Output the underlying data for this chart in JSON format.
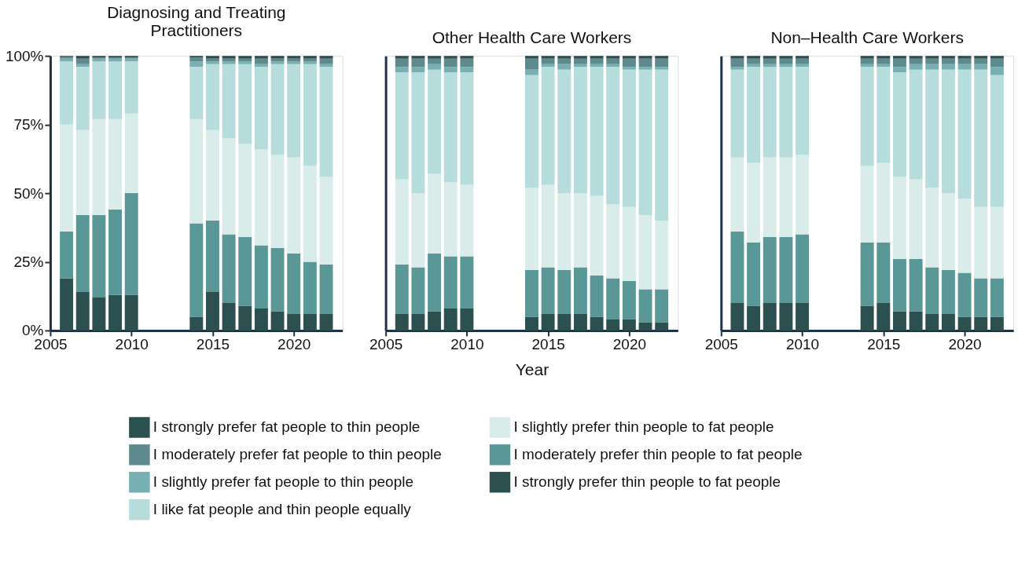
{
  "chart_data": [
    {
      "type": "bar",
      "stacked": true,
      "title": "Diagnosing and Treating Practitioners",
      "x": [
        2006,
        2007,
        2008,
        2009,
        2010,
        2014,
        2015,
        2016,
        2017,
        2018,
        2019,
        2020,
        2021,
        2022
      ],
      "xlim": [
        2005,
        2023
      ],
      "xticks": [
        2005,
        2010,
        2015,
        2020
      ],
      "ylim": [
        0,
        100
      ],
      "yticks": [
        {
          "value": 0,
          "label": "0%"
        },
        {
          "value": 25,
          "label": "25%"
        },
        {
          "value": 50,
          "label": "50%"
        },
        {
          "value": 75,
          "label": "75%"
        },
        {
          "value": 100,
          "label": "100%"
        }
      ],
      "legend": "bottom",
      "series": [
        {
          "name": "I strongly prefer thin people to fat people",
          "color": "#2c5050",
          "values": [
            19,
            14,
            12,
            13,
            13,
            5,
            14,
            10,
            9,
            8,
            7,
            6,
            6,
            6
          ]
        },
        {
          "name": "I moderately prefer thin people to fat people",
          "color": "#5a9898",
          "values": [
            17,
            28,
            30,
            31,
            37,
            34,
            26,
            25,
            25,
            23,
            23,
            22,
            19,
            18
          ]
        },
        {
          "name": "I slightly prefer thin people to fat people",
          "color": "#d9ecea",
          "values": [
            39,
            31,
            35,
            33,
            29,
            38,
            33,
            35,
            34,
            35,
            34,
            35,
            35,
            32
          ]
        },
        {
          "name": "I like fat people and thin people equally",
          "color": "#b7dcdc",
          "values": [
            23,
            23,
            21,
            21,
            19,
            19,
            24,
            27,
            29,
            30,
            33,
            34,
            37,
            40
          ]
        },
        {
          "name": "I slightly prefer fat people to thin people",
          "color": "#77b0b2",
          "values": [
            1,
            1,
            1,
            1,
            1,
            2,
            1,
            1,
            1,
            1,
            1,
            1,
            1,
            1
          ]
        },
        {
          "name": "I moderately prefer fat people to thin people",
          "color": "#5e8a8e",
          "values": [
            0.6,
            2,
            0.5,
            0.5,
            0.5,
            1.5,
            1,
            1,
            1,
            2,
            1,
            1,
            1,
            2
          ]
        },
        {
          "name": "I strongly prefer fat people to thin people",
          "color": "#2a5050",
          "values": [
            0.4,
            1,
            0.5,
            0.5,
            0.5,
            0.5,
            1,
            1,
            1,
            1,
            1,
            1,
            1,
            1
          ]
        }
      ]
    },
    {
      "type": "bar",
      "stacked": true,
      "title": "Other Health Care Workers",
      "xlabel": "Year",
      "x": [
        2006,
        2007,
        2008,
        2009,
        2010,
        2014,
        2015,
        2016,
        2017,
        2018,
        2019,
        2020,
        2021,
        2022
      ],
      "xlim": [
        2005,
        2023
      ],
      "xticks": [
        2005,
        2010,
        2015,
        2020
      ],
      "ylim": [
        0,
        100
      ],
      "tick_labels": "x",
      "legend": "bottom",
      "series": [
        {
          "name": "I strongly prefer thin people to fat people",
          "color": "#2c5050",
          "values": [
            6,
            6,
            7,
            8,
            8,
            5,
            6,
            6,
            6,
            5,
            4,
            4,
            3,
            3
          ]
        },
        {
          "name": "I moderately prefer thin people to fat people",
          "color": "#5a9898",
          "values": [
            18,
            17,
            21,
            19,
            19,
            17,
            17,
            16,
            17,
            15,
            15,
            14,
            12,
            12
          ]
        },
        {
          "name": "I slightly prefer thin people to fat people",
          "color": "#d9ecea",
          "values": [
            31,
            27,
            29,
            27,
            26,
            30,
            30,
            28,
            27,
            29,
            27,
            27,
            27,
            25
          ]
        },
        {
          "name": "I like fat people and thin people equally",
          "color": "#b7dcdc",
          "values": [
            39,
            44,
            38,
            40,
            41,
            41,
            43,
            45,
            46,
            47,
            50,
            50,
            53,
            55
          ]
        },
        {
          "name": "I slightly prefer fat people to thin people",
          "color": "#77b0b2",
          "values": [
            2,
            2,
            2,
            2,
            2,
            2,
            1,
            2,
            1,
            1,
            1,
            1,
            1,
            1
          ]
        },
        {
          "name": "I moderately prefer fat people to thin people",
          "color": "#5e8a8e",
          "values": [
            3,
            3,
            2,
            3,
            3,
            4,
            2,
            2,
            2,
            2,
            2,
            3,
            3,
            3
          ]
        },
        {
          "name": "I strongly prefer fat people to thin people",
          "color": "#2a5050",
          "values": [
            1,
            1,
            1,
            1,
            1,
            1,
            1,
            1,
            1,
            1,
            1,
            1,
            1,
            1
          ]
        }
      ]
    },
    {
      "type": "bar",
      "stacked": true,
      "title": "Non–Health Care Workers",
      "x": [
        2006,
        2007,
        2008,
        2009,
        2010,
        2014,
        2015,
        2016,
        2017,
        2018,
        2019,
        2020,
        2021,
        2022
      ],
      "xlim": [
        2005,
        2023
      ],
      "xticks": [
        2005,
        2010,
        2015,
        2020
      ],
      "ylim": [
        0,
        100
      ],
      "tick_labels": "x",
      "legend": "bottom",
      "series": [
        {
          "name": "I strongly prefer thin people to fat people",
          "color": "#2c5050",
          "values": [
            10,
            9,
            10,
            10,
            10,
            9,
            10,
            7,
            7,
            6,
            6,
            5,
            5,
            5
          ]
        },
        {
          "name": "I moderately prefer thin people to fat people",
          "color": "#5a9898",
          "values": [
            26,
            23,
            24,
            24,
            25,
            23,
            22,
            19,
            19,
            17,
            16,
            16,
            14,
            14
          ]
        },
        {
          "name": "I slightly prefer thin people to fat people",
          "color": "#d9ecea",
          "values": [
            27,
            29,
            29,
            29,
            29,
            28,
            29,
            30,
            29,
            29,
            28,
            27,
            26,
            26
          ]
        },
        {
          "name": "I like fat people and thin people equally",
          "color": "#b7dcdc",
          "values": [
            32,
            35,
            33,
            33,
            32,
            36,
            35,
            38,
            40,
            43,
            45,
            47,
            50,
            48
          ]
        },
        {
          "name": "I slightly prefer fat people to thin people",
          "color": "#77b0b2",
          "values": [
            1,
            1,
            1,
            1,
            1,
            1,
            1,
            2,
            2,
            2,
            2,
            2,
            2,
            3
          ]
        },
        {
          "name": "I moderately prefer fat people to thin people",
          "color": "#5e8a8e",
          "values": [
            3,
            2,
            2,
            2,
            2,
            2,
            2,
            3,
            2,
            2,
            2,
            2,
            2,
            3
          ]
        },
        {
          "name": "I strongly prefer fat people to thin people",
          "color": "#2a5050",
          "values": [
            1,
            1,
            1,
            1,
            1,
            1,
            1,
            1,
            1,
            1,
            1,
            1,
            1,
            1
          ]
        }
      ]
    }
  ]
}
